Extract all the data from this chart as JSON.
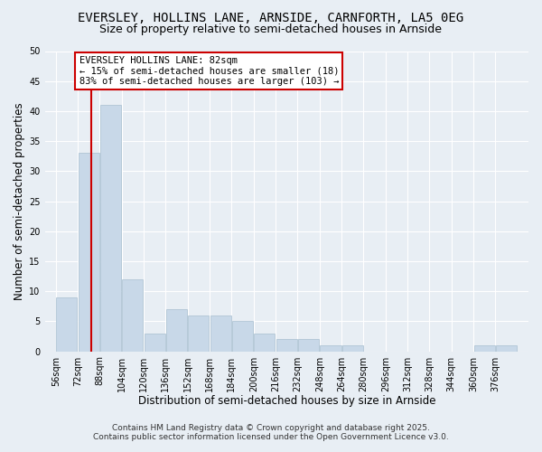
{
  "title_line1": "EVERSLEY, HOLLINS LANE, ARNSIDE, CARNFORTH, LA5 0EG",
  "title_line2": "Size of property relative to semi-detached houses in Arnside",
  "xlabel": "Distribution of semi-detached houses by size in Arnside",
  "ylabel": "Number of semi-detached properties",
  "bin_edges": [
    56,
    72,
    88,
    104,
    120,
    136,
    152,
    168,
    184,
    200,
    216,
    232,
    248,
    264,
    280,
    296,
    312,
    328,
    344,
    360,
    376,
    392
  ],
  "bin_labels": [
    "56sqm",
    "72sqm",
    "88sqm",
    "104sqm",
    "120sqm",
    "136sqm",
    "152sqm",
    "168sqm",
    "184sqm",
    "200sqm",
    "216sqm",
    "232sqm",
    "248sqm",
    "264sqm",
    "280sqm",
    "296sqm",
    "312sqm",
    "328sqm",
    "344sqm",
    "360sqm",
    "376sqm"
  ],
  "counts": [
    9,
    33,
    41,
    12,
    3,
    7,
    6,
    6,
    5,
    3,
    2,
    2,
    1,
    1,
    0,
    0,
    0,
    0,
    0,
    1,
    1
  ],
  "property_size": 82,
  "bar_color": "#c8d8e8",
  "bar_edge_color": "#a8bfd0",
  "line_color": "#cc0000",
  "annotation_text": "EVERSLEY HOLLINS LANE: 82sqm\n← 15% of semi-detached houses are smaller (18)\n83% of semi-detached houses are larger (103) →",
  "annotation_box_color": "#ffffff",
  "annotation_box_edge": "#cc0000",
  "ylim": [
    0,
    50
  ],
  "yticks": [
    0,
    5,
    10,
    15,
    20,
    25,
    30,
    35,
    40,
    45,
    50
  ],
  "footer_line1": "Contains HM Land Registry data © Crown copyright and database right 2025.",
  "footer_line2": "Contains public sector information licensed under the Open Government Licence v3.0.",
  "background_color": "#e8eef4",
  "grid_color": "#ffffff",
  "title_fontsize": 10,
  "subtitle_fontsize": 9,
  "axis_label_fontsize": 8.5,
  "tick_fontsize": 7,
  "annotation_fontsize": 7.5,
  "footer_fontsize": 6.5
}
